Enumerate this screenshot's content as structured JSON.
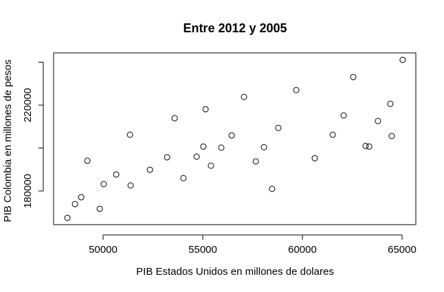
{
  "chart_data": {
    "type": "scatter",
    "title": "Entre 2012 y 2005",
    "x_label": "PIB Estados Unidos en millones de dolares",
    "y_label": "PIB Colombia en millones de pesos",
    "xlim": [
      47517,
      65690
    ],
    "ylim": [
      164320,
      244320
    ],
    "xticks": [
      50000,
      55000,
      60000,
      65000
    ],
    "yticks": [
      180000,
      220000
    ],
    "yticks_unlabeled": [
      200000,
      240000
    ],
    "color": "#000000",
    "x": [
      48210,
      48590,
      48900,
      49210,
      49830,
      50030,
      50660,
      51350,
      51380,
      52350,
      53210,
      53590,
      54030,
      54690,
      55030,
      55140,
      55410,
      55930,
      56450,
      57070,
      57660,
      58070,
      58480,
      58790,
      59690,
      60620,
      61520,
      62070,
      62550,
      63170,
      63350,
      63790,
      64410,
      64480,
      65030
    ],
    "y": [
      167500,
      173900,
      177100,
      194100,
      171700,
      183200,
      187700,
      206200,
      182600,
      189900,
      195700,
      213900,
      186000,
      196000,
      200700,
      218100,
      191800,
      200200,
      205900,
      223800,
      193800,
      200400,
      181000,
      209400,
      227000,
      195300,
      206200,
      215200,
      233100,
      201000,
      200700,
      212600,
      220600,
      205600,
      241100
    ]
  }
}
